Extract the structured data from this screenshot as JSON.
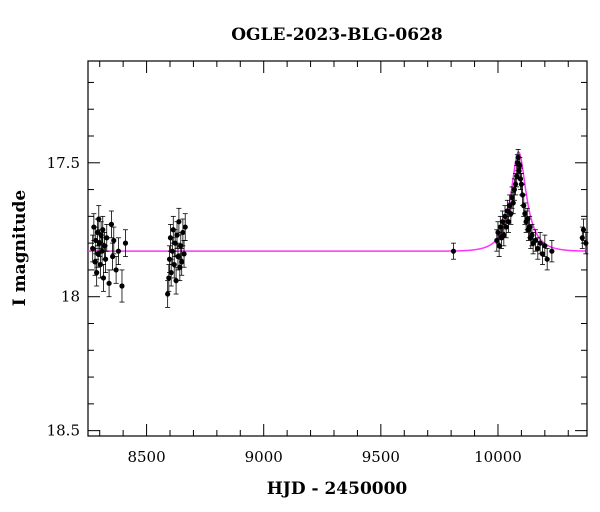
{
  "chart_data": {
    "type": "scatter",
    "title": "OGLE-2023-BLG-0628",
    "xlabel": "HJD - 2450000",
    "ylabel": "I magnitude",
    "xlim": [
      8250,
      10380
    ],
    "ylim": [
      18.52,
      17.12
    ],
    "y_inverted": true,
    "grid": false,
    "x_ticks": [
      8500,
      9000,
      9500,
      10000
    ],
    "x_tick_labels": [
      "8500",
      "9000",
      "9500",
      "10000"
    ],
    "y_ticks": [
      17.5,
      18,
      18.5
    ],
    "y_tick_labels": [
      "17.5",
      "18",
      "18.5"
    ],
    "colors": {
      "points": "#000000",
      "model": "#ff33ff",
      "axes": "#000000"
    },
    "series": [
      {
        "kind": "points_with_errorbars",
        "x": [
          8270,
          8275,
          8280,
          8283,
          8287,
          8290,
          8293,
          8296,
          8300,
          8303,
          8306,
          8310,
          8313,
          8316,
          8320,
          8325,
          8330,
          8340,
          8350,
          8355,
          8360,
          8370,
          8380,
          8395,
          8410,
          8590,
          8595,
          8598,
          8602,
          8605,
          8610,
          8614,
          8618,
          8622,
          8626,
          8630,
          8634,
          8638,
          8642,
          8646,
          8650,
          8655,
          8660,
          8665,
          9810,
          9995,
          10000,
          10005,
          10010,
          10015,
          10020,
          10025,
          10030,
          10035,
          10040,
          10045,
          10050,
          10055,
          10060,
          10065,
          10070,
          10075,
          10080,
          10083,
          10086,
          10090,
          10093,
          10096,
          10100,
          10105,
          10110,
          10115,
          10120,
          10125,
          10130,
          10135,
          10140,
          10145,
          10150,
          10160,
          10170,
          10180,
          10190,
          10200,
          10210,
          10230,
          10360,
          10365,
          10375
        ],
        "y": [
          17.82,
          17.74,
          17.87,
          17.79,
          17.91,
          17.76,
          17.84,
          17.71,
          17.8,
          17.88,
          17.77,
          17.83,
          17.75,
          17.93,
          17.81,
          17.86,
          17.78,
          17.95,
          17.73,
          17.85,
          17.79,
          17.9,
          17.83,
          17.96,
          17.8,
          17.99,
          17.93,
          17.86,
          17.78,
          17.91,
          17.83,
          17.75,
          17.88,
          17.8,
          17.94,
          17.77,
          17.85,
          17.72,
          17.89,
          17.81,
          17.87,
          17.76,
          17.84,
          17.74,
          17.83,
          17.79,
          17.76,
          17.81,
          17.74,
          17.78,
          17.72,
          17.77,
          17.7,
          17.74,
          17.68,
          17.72,
          17.66,
          17.69,
          17.63,
          17.65,
          17.6,
          17.58,
          17.55,
          17.5,
          17.48,
          17.53,
          17.51,
          17.56,
          17.58,
          17.62,
          17.66,
          17.69,
          17.72,
          17.71,
          17.75,
          17.74,
          17.78,
          17.77,
          17.8,
          17.79,
          17.82,
          17.8,
          17.84,
          17.81,
          17.86,
          17.83,
          17.78,
          17.75,
          17.8
        ],
        "yerr": [
          0.05,
          0.05,
          0.05,
          0.05,
          0.05,
          0.05,
          0.05,
          0.05,
          0.05,
          0.05,
          0.05,
          0.05,
          0.05,
          0.05,
          0.05,
          0.05,
          0.05,
          0.05,
          0.05,
          0.05,
          0.05,
          0.05,
          0.05,
          0.06,
          0.05,
          0.05,
          0.05,
          0.05,
          0.05,
          0.05,
          0.05,
          0.05,
          0.05,
          0.05,
          0.05,
          0.05,
          0.05,
          0.05,
          0.05,
          0.05,
          0.05,
          0.05,
          0.05,
          0.05,
          0.03,
          0.04,
          0.04,
          0.04,
          0.04,
          0.04,
          0.04,
          0.04,
          0.04,
          0.04,
          0.04,
          0.04,
          0.04,
          0.04,
          0.04,
          0.04,
          0.04,
          0.04,
          0.04,
          0.03,
          0.03,
          0.03,
          0.03,
          0.04,
          0.04,
          0.04,
          0.04,
          0.04,
          0.04,
          0.04,
          0.04,
          0.04,
          0.04,
          0.04,
          0.04,
          0.04,
          0.04,
          0.04,
          0.04,
          0.04,
          0.04,
          0.04,
          0.04,
          0.04,
          0.04
        ]
      },
      {
        "kind": "model_curve",
        "baseline": 17.83,
        "peak_mag": 17.46,
        "t0": 10088,
        "tE": 40,
        "x_range": [
          8250,
          10380
        ]
      }
    ]
  }
}
